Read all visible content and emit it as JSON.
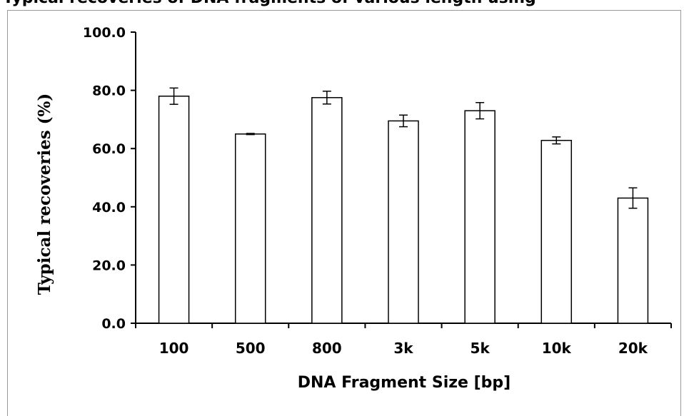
{
  "page": {
    "title": "Typical recoveries of DNA fragments of various length using"
  },
  "chart_data": {
    "type": "bar",
    "categories": [
      "100",
      "500",
      "800",
      "3k",
      "5k",
      "10k",
      "20k"
    ],
    "values": [
      78.0,
      65.0,
      77.5,
      69.5,
      73.0,
      62.8,
      43.0
    ],
    "errors": [
      2.8,
      0.2,
      2.2,
      2.0,
      2.8,
      1.2,
      3.5
    ],
    "ylim": [
      0,
      100
    ],
    "yticks": [
      "0.0",
      "20.0",
      "40.0",
      "60.0",
      "80.0",
      "100.0"
    ],
    "ytick_values": [
      0,
      20,
      40,
      60,
      80,
      100
    ],
    "xlabel": "DNA Fragment Size [bp]",
    "ylabel": "Typical recoveries (%)",
    "grid": false,
    "colors": {
      "bar_fill": "#ffffff",
      "bar_stroke": "#000000",
      "axis": "#000000"
    }
  }
}
